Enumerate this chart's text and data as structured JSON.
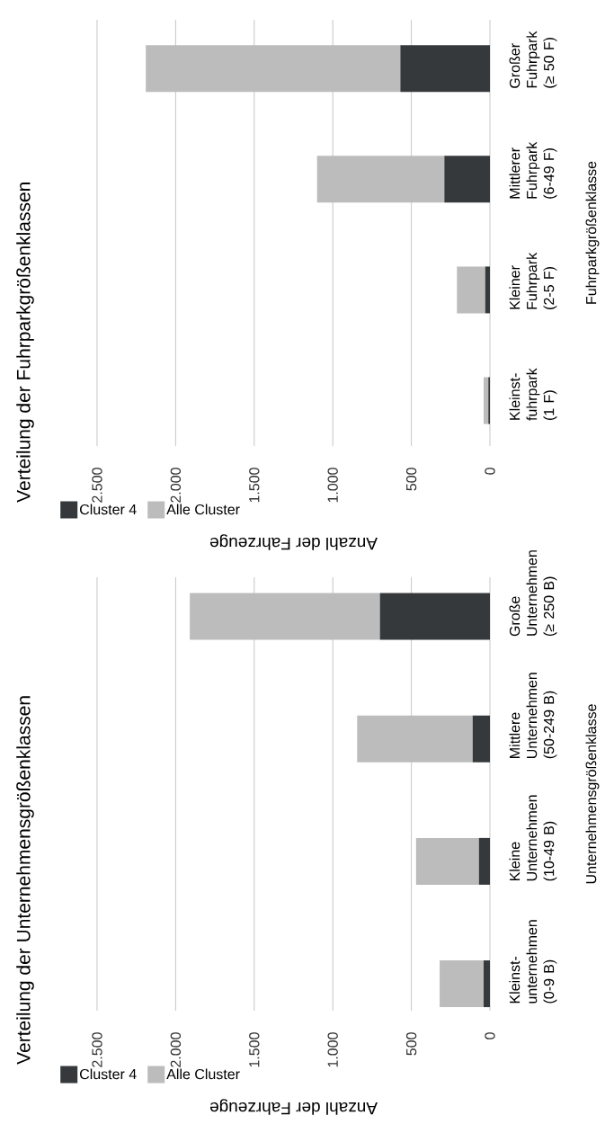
{
  "chart_data": [
    {
      "type": "bar",
      "orientation": "horizontal",
      "title": "Verteilung der Fuhrparkgrößenklassen",
      "xlabel": "Anzahl der Fahrzeuge",
      "ylabel": "Fuhrparkgrößenklasse",
      "categories": [
        "Großer Fuhrpark (≥ 50 F)",
        "Mittlerer Fuhrpark (6-49 F)",
        "Kleiner Fuhrpark (2-5 F)",
        "Kleinst-fuhrpark (1 F)"
      ],
      "stacked": true,
      "series": [
        {
          "name": "Cluster 4",
          "color": "#36393c",
          "values": [
            570,
            290,
            30,
            10
          ]
        },
        {
          "name": "Alle Cluster",
          "color": "#bbbcbb",
          "values": [
            1620,
            810,
            180,
            30
          ]
        }
      ],
      "xlim": [
        2500,
        0
      ],
      "xticks": [
        {
          "value": 2500,
          "label": "2.500"
        },
        {
          "value": 2000,
          "label": "2.000"
        },
        {
          "value": 1500,
          "label": "1.500"
        },
        {
          "value": 1000,
          "label": "1.000"
        },
        {
          "value": 500,
          "label": "500"
        },
        {
          "value": 0,
          "label": "0"
        }
      ],
      "grid": "x",
      "legend": "bottom left"
    },
    {
      "type": "bar",
      "orientation": "horizontal",
      "title": "Verteilung der Unternehmensgrößenklassen",
      "xlabel": "Anzahl der Fahrzeuge",
      "ylabel": "Unternehmensgrößenklasse",
      "categories": [
        "Große Unternehmen (≥ 250 B)",
        "Mittlere Unternehmen (50-249 B)",
        "Kleine Unternehmen (10-49 B)",
        "Kleinst-unternehmen (0-9 B)"
      ],
      "stacked": true,
      "series": [
        {
          "name": "Cluster 4",
          "color": "#36393c",
          "values": [
            700,
            110,
            70,
            40
          ]
        },
        {
          "name": "Alle Cluster",
          "color": "#bbbcbb",
          "values": [
            1210,
            735,
            400,
            280
          ]
        }
      ],
      "xlim": [
        2500,
        0
      ],
      "xticks": [
        {
          "value": 2500,
          "label": "2.500"
        },
        {
          "value": 2000,
          "label": "2.000"
        },
        {
          "value": 1500,
          "label": "1.500"
        },
        {
          "value": 1000,
          "label": "1.000"
        },
        {
          "value": 500,
          "label": "500"
        },
        {
          "value": 0,
          "label": "0"
        }
      ],
      "grid": "x",
      "legend": "bottom left"
    }
  ]
}
